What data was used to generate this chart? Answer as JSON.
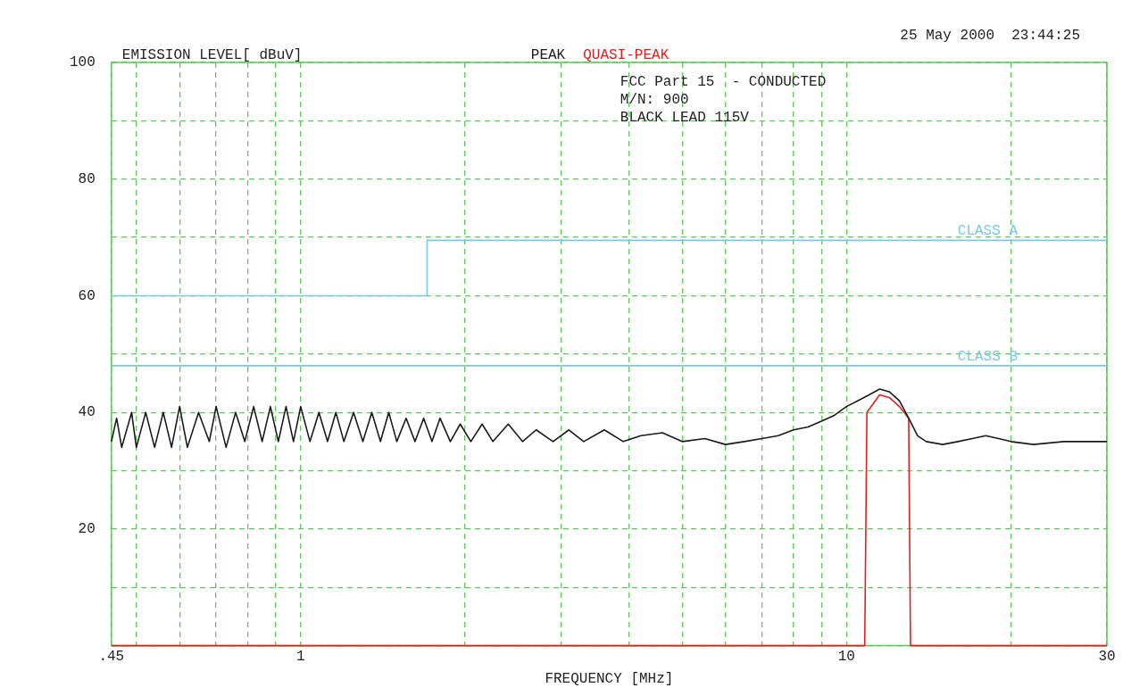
{
  "chart_data": {
    "type": "line",
    "ylabel": "EMISSION LEVEL[ dBuV]",
    "xlabel": "FREQUENCY [MHz]",
    "annotations": [
      "25 May 2000  23:44:25",
      "FCC Part 15  - CONDUCTED",
      "M/N: 900",
      "BLACK LEAD 115V"
    ],
    "xlim": [
      0.45,
      30
    ],
    "xticks": [
      {
        "value": 0.45,
        "label": ".45"
      },
      {
        "value": 0.5,
        "label": null
      },
      {
        "value": 0.6,
        "label": null
      },
      {
        "value": 0.7,
        "label": null
      },
      {
        "value": 0.8,
        "label": null
      },
      {
        "value": 0.9,
        "label": null
      },
      1,
      {
        "value": 2,
        "label": null
      },
      {
        "value": 3,
        "label": null
      },
      {
        "value": 4,
        "label": null
      },
      {
        "value": 5,
        "label": null
      },
      {
        "value": 6,
        "label": null
      },
      {
        "value": 7,
        "label": null
      },
      {
        "value": 8,
        "label": null
      },
      {
        "value": 9,
        "label": null
      },
      10,
      {
        "value": 20,
        "label": null
      },
      30
    ],
    "ylim": [
      0,
      100
    ],
    "yticks": [
      {
        "value": 0,
        "label": null
      },
      {
        "value": 10,
        "label": null
      },
      20,
      {
        "value": 30,
        "label": null
      },
      40,
      {
        "value": 50,
        "label": null
      },
      60,
      {
        "value": 70,
        "label": null
      },
      80,
      {
        "value": 90,
        "label": null
      },
      100
    ],
    "log": "x",
    "grid": true,
    "legend": "top",
    "line_style": "solid",
    "marker": "none",
    "ref_lines": [
      {
        "axis": "y",
        "value": 48,
        "label": "CLASS B",
        "color": "#7cc8dc"
      }
    ],
    "series": [
      {
        "name": "PEAK",
        "color": "#1a1a1a",
        "x": [
          0.45,
          0.46,
          0.47,
          0.49,
          0.5,
          0.52,
          0.54,
          0.56,
          0.58,
          0.6,
          0.62,
          0.65,
          0.68,
          0.7,
          0.73,
          0.76,
          0.79,
          0.82,
          0.85,
          0.88,
          0.91,
          0.94,
          0.97,
          1.0,
          1.04,
          1.08,
          1.12,
          1.16,
          1.2,
          1.25,
          1.3,
          1.35,
          1.4,
          1.45,
          1.5,
          1.56,
          1.62,
          1.68,
          1.74,
          1.8,
          1.88,
          1.96,
          2.05,
          2.15,
          2.25,
          2.4,
          2.55,
          2.7,
          2.9,
          3.1,
          3.3,
          3.6,
          3.9,
          4.2,
          4.6,
          5,
          5.5,
          6,
          6.5,
          7,
          7.5,
          8,
          8.5,
          9,
          9.5,
          10,
          10.5,
          11,
          11.5,
          12,
          12.5,
          13,
          13.5,
          14,
          15,
          16,
          17,
          18,
          19,
          20,
          22,
          25,
          30
        ],
        "values": [
          35,
          39,
          34,
          40,
          34,
          40,
          34,
          40,
          34,
          41,
          34,
          40,
          35,
          41,
          34,
          40,
          35,
          41,
          35,
          41,
          35,
          41,
          35,
          41,
          35,
          40,
          35,
          40,
          35,
          40,
          35,
          40,
          35,
          40,
          35,
          39,
          35,
          39,
          35,
          39,
          35,
          38,
          35,
          38,
          35,
          38,
          35,
          37,
          35,
          37,
          35,
          37,
          35,
          36,
          36.5,
          35,
          35.5,
          34.5,
          35,
          35.5,
          36,
          37,
          37.5,
          38.5,
          39.5,
          41,
          42,
          43,
          44,
          43.5,
          42,
          39,
          36,
          35,
          34.5,
          35,
          35.5,
          36,
          35.5,
          35,
          34.5,
          35,
          35
        ]
      },
      {
        "name": "QUASI-PEAK",
        "color": "#e02020",
        "x": [
          0.45,
          10.8,
          10.9,
          11.5,
          12,
          12.5,
          13,
          13.1,
          30
        ],
        "values": [
          0,
          0,
          40,
          43,
          42.5,
          41,
          39,
          0,
          0
        ]
      },
      {
        "name": "CLASS A",
        "type": "step",
        "color": "#7cc8dc",
        "x": [
          0.45,
          1.705,
          30
        ],
        "values": [
          60,
          69.5,
          69.5
        ]
      }
    ]
  }
}
